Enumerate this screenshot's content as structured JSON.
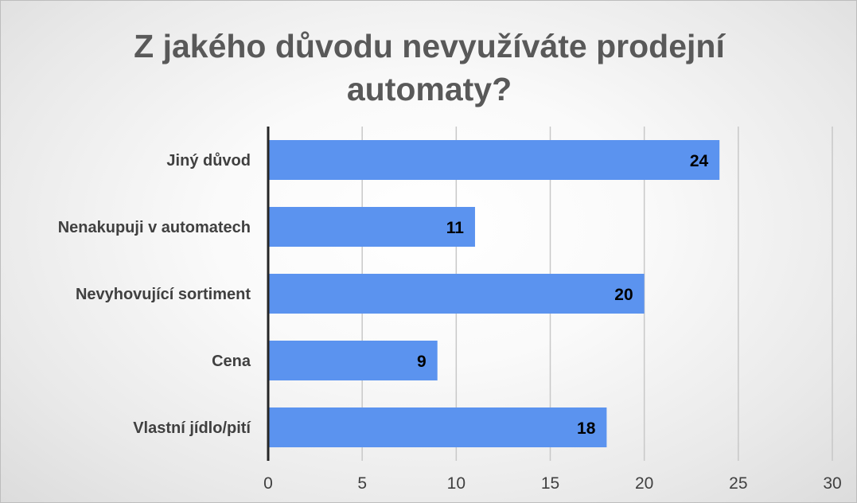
{
  "chart_data": {
    "type": "bar",
    "orientation": "horizontal",
    "title": "Z jakého důvodu nevyužíváte prodejní\nautomaty?",
    "categories": [
      "Jiný důvod",
      "Nenakupuji v automatech",
      "Nevyhovující sortiment",
      "Cena",
      "Vlastní jídlo/pití"
    ],
    "values": [
      24,
      11,
      20,
      9,
      18
    ],
    "data_labels": [
      "24",
      "11",
      "20",
      "9",
      "18"
    ],
    "xlim": [
      0,
      30
    ],
    "xticks": [
      0,
      5,
      10,
      15,
      20,
      25,
      30
    ],
    "xtick_labels": [
      "0",
      "5",
      "10",
      "15",
      "20",
      "25",
      "30"
    ],
    "grid": "vertical",
    "legend": "none",
    "colors": {
      "bar": "#5b93ef",
      "grid": "#c8c8c8",
      "axis": "#262626",
      "title": "#595959",
      "text": "#404040"
    }
  }
}
